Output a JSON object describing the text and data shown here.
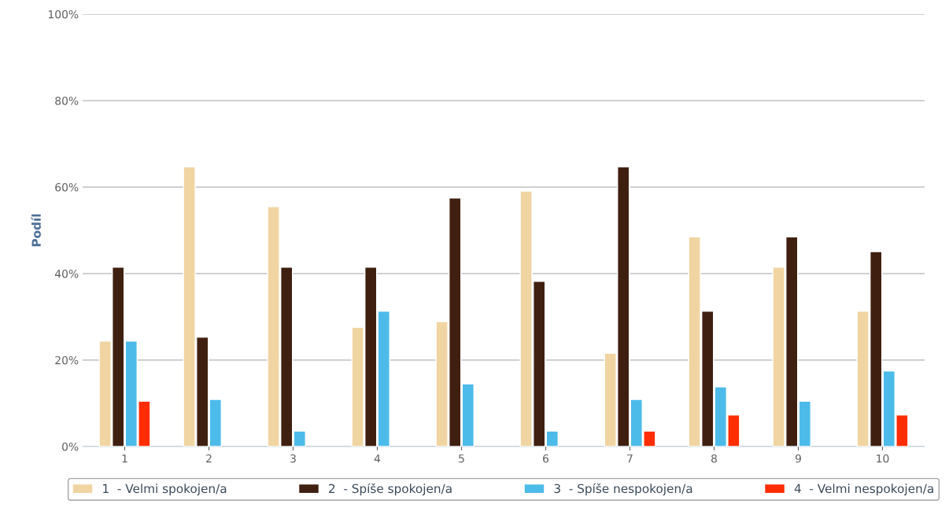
{
  "chart_data": {
    "type": "bar",
    "ylabel": "Podíl",
    "categories": [
      "1",
      "2",
      "3",
      "4",
      "5",
      "6",
      "7",
      "8",
      "9",
      "10"
    ],
    "series": [
      {
        "name": "1  - Velmi spokojen/a",
        "color": "#f0d5a2",
        "values": [
          24.4,
          64.7,
          55.5,
          27.6,
          28.9,
          59.1,
          21.6,
          48.5,
          41.5,
          31.3
        ]
      },
      {
        "name": "2  - Spíše spokojen/a",
        "color": "#3f2010",
        "values": [
          41.5,
          25.3,
          41.5,
          41.5,
          57.5,
          38.2,
          64.7,
          31.3,
          48.5,
          45.1
        ]
      },
      {
        "name": "3  - Spíše nespokojen/a",
        "color": "#4dbbea",
        "values": [
          24.4,
          10.9,
          3.6,
          31.3,
          14.5,
          3.6,
          10.9,
          13.8,
          10.5,
          17.5
        ]
      },
      {
        "name": "4  - Velmi nespokojen/a",
        "color": "#ff2d00",
        "values": [
          10.5,
          null,
          null,
          null,
          null,
          null,
          3.6,
          7.3,
          null,
          7.3
        ]
      }
    ],
    "ylim": [
      0,
      100
    ],
    "yticks": [
      {
        "value": 0,
        "label": "0%"
      },
      {
        "value": 20,
        "label": "20%"
      },
      {
        "value": 40,
        "label": "40%"
      },
      {
        "value": 60,
        "label": "60%"
      },
      {
        "value": 80,
        "label": "80%"
      },
      {
        "value": 100,
        "label": "100%"
      }
    ],
    "grid": "y",
    "legend": "bottom"
  }
}
